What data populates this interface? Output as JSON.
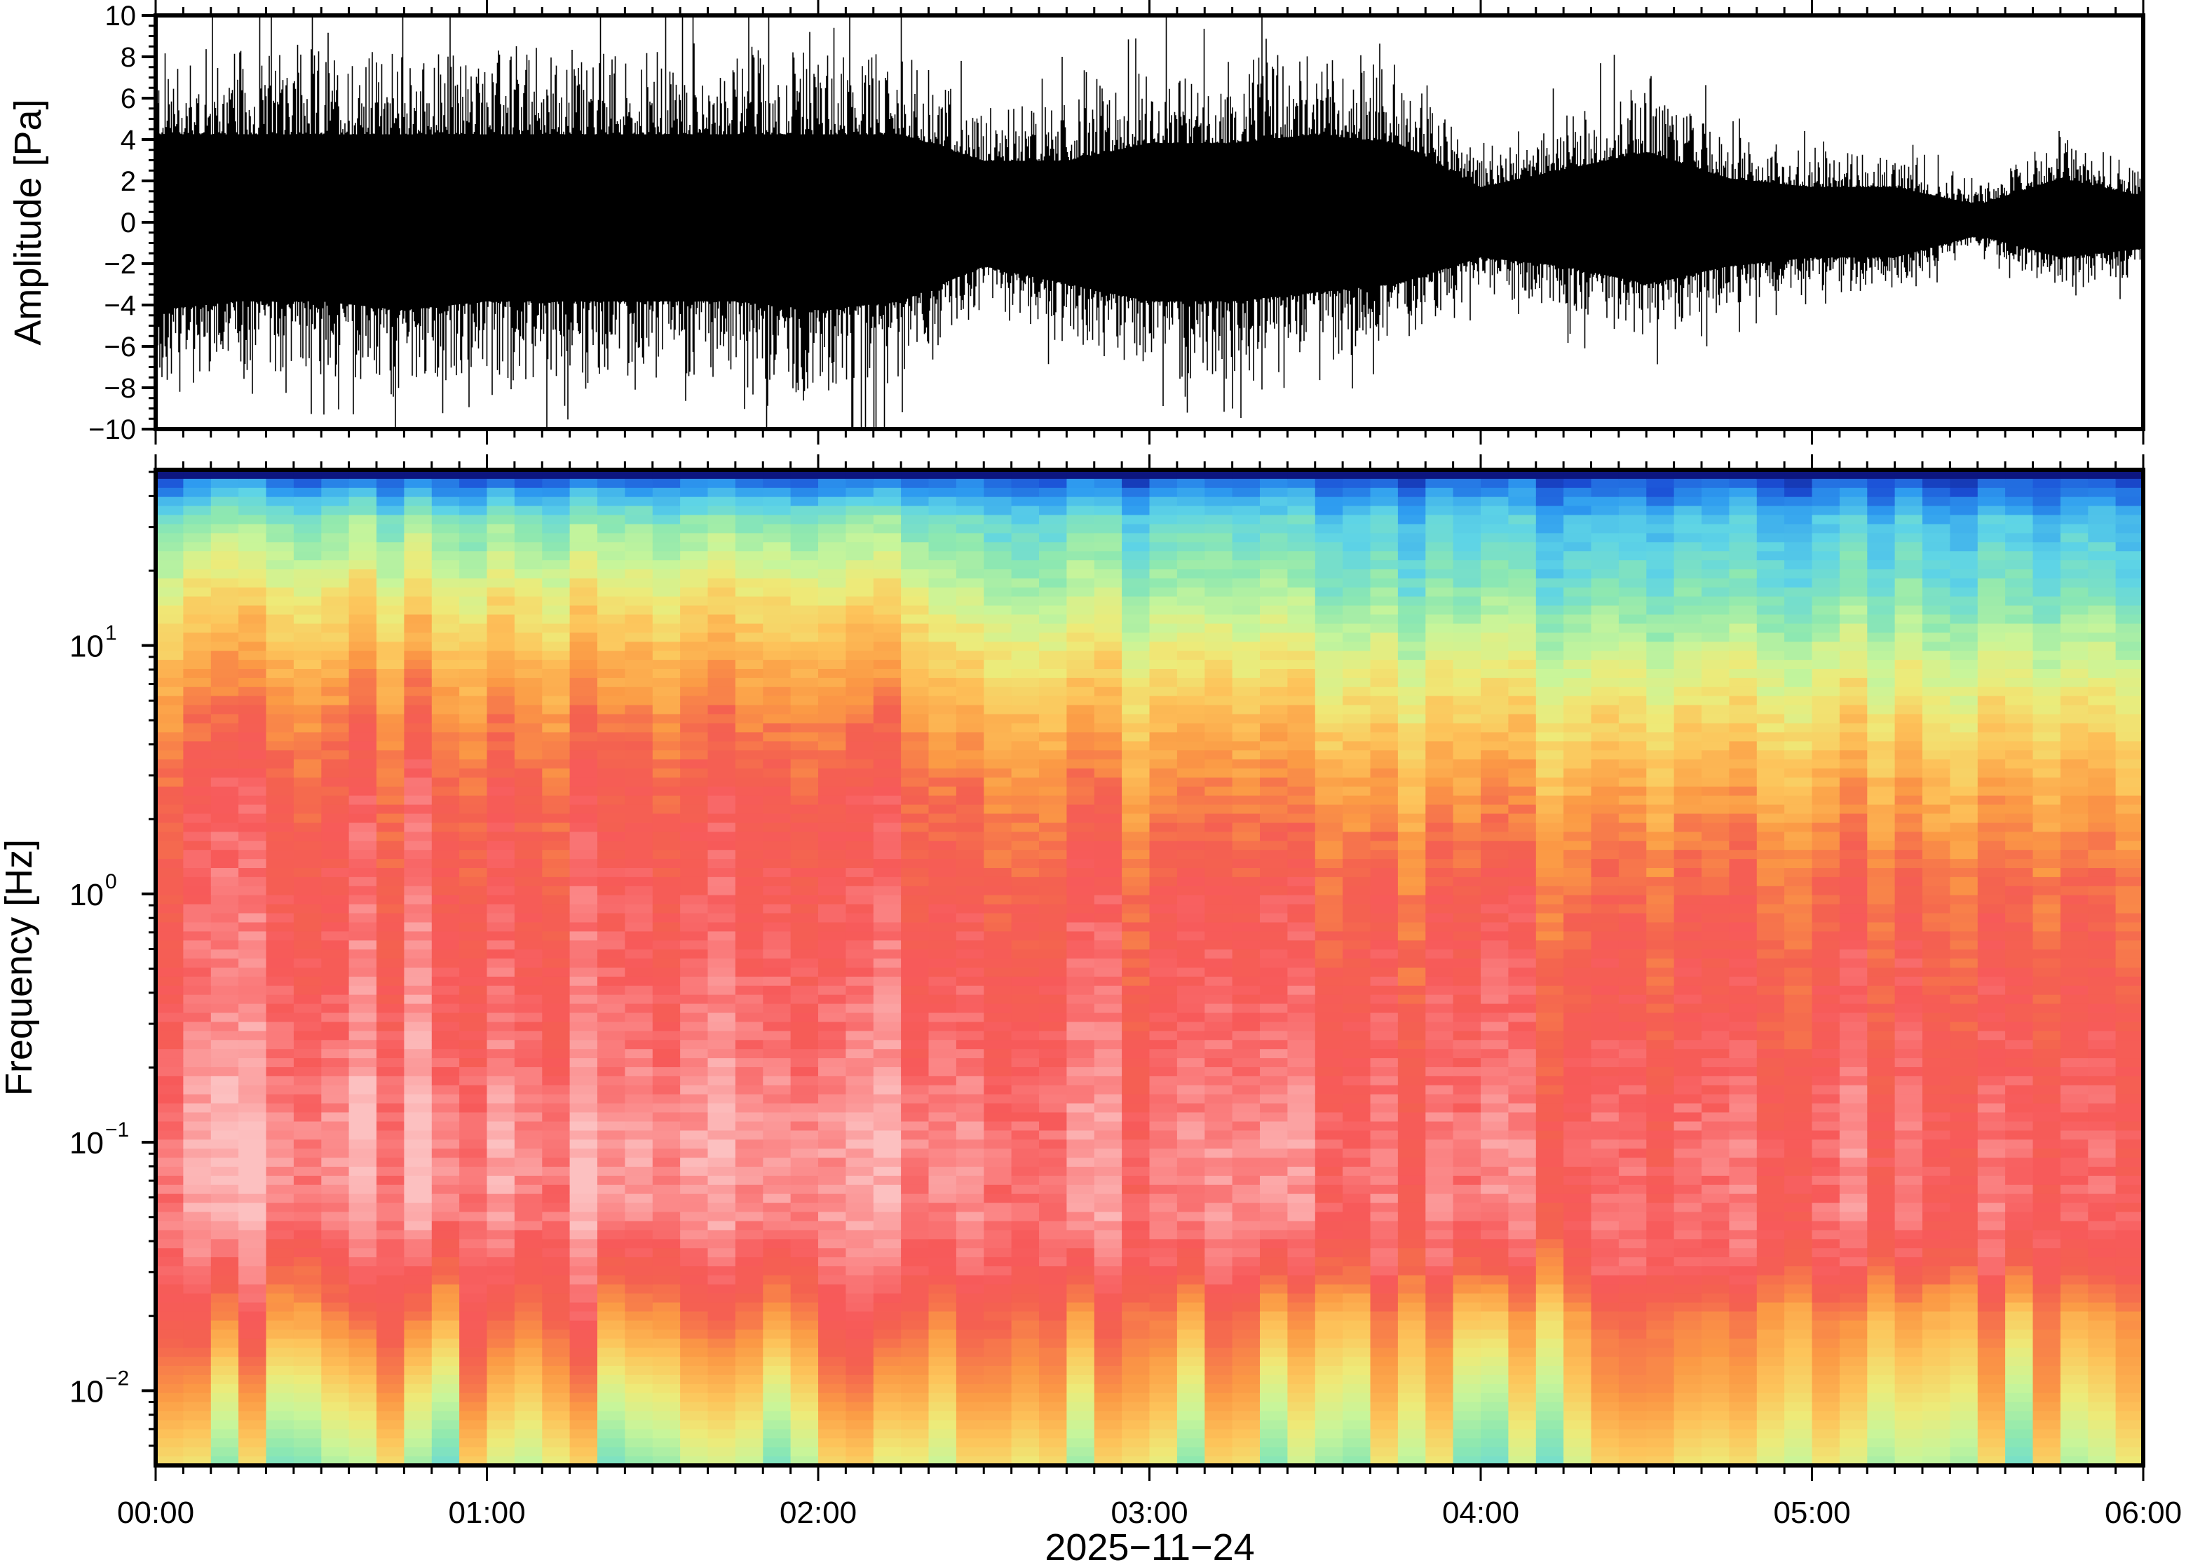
{
  "chart_data": [
    {
      "type": "line",
      "title": "",
      "ylabel": "Amplitude [Pa]",
      "ylim": [
        -10,
        10
      ],
      "yticks": [
        "10",
        "8",
        "6",
        "4",
        "2",
        "0",
        "−2",
        "−4",
        "−6",
        "−8",
        "−10"
      ],
      "ytick_values": [
        10,
        8,
        6,
        4,
        2,
        0,
        -2,
        -4,
        -6,
        -8,
        -10
      ],
      "x_hours": [
        0,
        0.25,
        0.5,
        0.75,
        1,
        1.25,
        1.5,
        1.75,
        2,
        2.25,
        2.5,
        2.75,
        3,
        3.25,
        3.5,
        3.75,
        4,
        4.25,
        4.5,
        4.75,
        5,
        5.25,
        5.5,
        5.75,
        6
      ],
      "envelope_upper": [
        10,
        10,
        10,
        10,
        10,
        10,
        10,
        10,
        10,
        10,
        7,
        7,
        9,
        9,
        10,
        9,
        4,
        6,
        8,
        5,
        4,
        4,
        2,
        5,
        3
      ],
      "envelope_lower": [
        -10,
        -9,
        -9,
        -10,
        -9,
        -9,
        -9,
        -9,
        -10,
        -9,
        -5,
        -7,
        -9,
        -9,
        -8,
        -7,
        -4,
        -5,
        -7,
        -5,
        -4,
        -4,
        -1.5,
        -4,
        -3
      ],
      "line_color": "#000000"
    },
    {
      "type": "heatmap",
      "ylabel": "Frequency [Hz]",
      "yscale": "log",
      "ylim": [
        0.005,
        50
      ],
      "yticks": [
        {
          "base": "10",
          "exp": "1",
          "value": 10
        },
        {
          "base": "10",
          "exp": "0",
          "value": 1
        },
        {
          "base": "10",
          "exp": "−1",
          "value": 0.1
        },
        {
          "base": "10",
          "exp": "−2",
          "value": 0.01
        }
      ],
      "xlabel": "2025−11−24",
      "xticks": [
        "00:00",
        "01:00",
        "02:00",
        "03:00",
        "04:00",
        "05:00",
        "06:00"
      ],
      "xlim_hours": [
        0,
        6
      ],
      "columns": 72,
      "relative_power_profile": {
        "log10_freq": [
          1.7,
          1.65,
          1.5,
          1.2,
          1.0,
          0.7,
          0.4,
          0.0,
          -0.6,
          -1.0,
          -1.3,
          -1.5,
          -1.7,
          -2.0,
          -2.3
        ],
        "before_02_20": [
          0.0,
          0.2,
          0.42,
          0.6,
          0.68,
          0.78,
          0.85,
          0.88,
          0.92,
          0.97,
          0.95,
          0.88,
          0.8,
          0.65,
          0.5
        ],
        "after_04_00": [
          0.0,
          0.15,
          0.3,
          0.4,
          0.5,
          0.62,
          0.72,
          0.82,
          0.87,
          0.9,
          0.9,
          0.85,
          0.72,
          0.62,
          0.5
        ]
      },
      "colormap": [
        "#0a0a6e",
        "#1b4fd6",
        "#2e9cf0",
        "#5ed4e6",
        "#8ee8b0",
        "#c8f59a",
        "#eeea78",
        "#fdc35a",
        "#fb9a45",
        "#f46150",
        "#f75a5a",
        "#fb8a8a",
        "#fcc0c0"
      ]
    }
  ]
}
